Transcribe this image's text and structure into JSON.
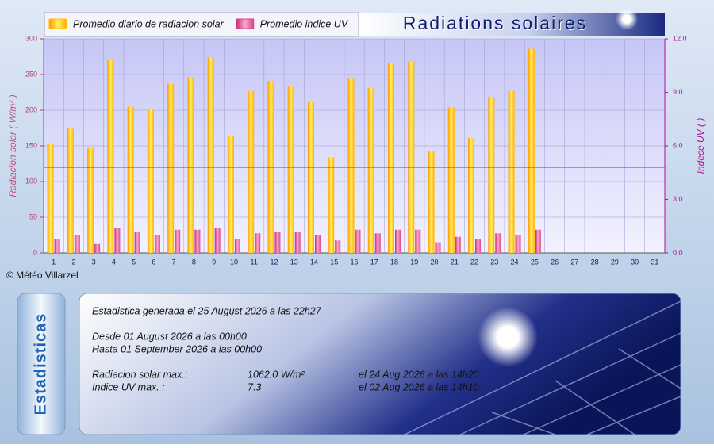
{
  "chart_data": {
    "type": "bar",
    "title": "Radiations solaires",
    "y_label": "Radiacion solar ( W/m² )",
    "y2_label": "Indece UV ( )",
    "categories": [
      "1",
      "2",
      "3",
      "4",
      "5",
      "6",
      "7",
      "8",
      "9",
      "10",
      "11",
      "12",
      "13",
      "14",
      "15",
      "16",
      "17",
      "18",
      "19",
      "20",
      "21",
      "22",
      "23",
      "24",
      "25",
      "26",
      "27",
      "28",
      "29",
      "30",
      "31"
    ],
    "series": [
      {
        "name": "Promedio diario de radiacion solar",
        "color": "#ffc000",
        "values": [
          152,
          174,
          147,
          270,
          205,
          201,
          237,
          246,
          274,
          164,
          227,
          241,
          233,
          211,
          134,
          244,
          231,
          266,
          268,
          142,
          204,
          161,
          219,
          227,
          286,
          null,
          null,
          null,
          null,
          null,
          null
        ]
      },
      {
        "name": "Promedio indice UV",
        "color": "#e0408a",
        "axis": "y2",
        "values": [
          0.8,
          1.0,
          0.5,
          1.4,
          1.2,
          1.0,
          1.3,
          1.3,
          1.4,
          0.8,
          1.1,
          1.2,
          1.2,
          1.0,
          0.7,
          1.3,
          1.1,
          1.3,
          1.3,
          0.6,
          0.9,
          0.8,
          1.1,
          1.0,
          1.3,
          null,
          null,
          null,
          null,
          null,
          null
        ]
      }
    ],
    "ylim": [
      0,
      300
    ],
    "yticks": [
      0,
      50,
      100,
      150,
      200,
      250,
      300
    ],
    "y2lim": [
      0,
      12
    ],
    "y2ticks": [
      {
        "value": 0,
        "label": "0.0"
      },
      {
        "value": 3,
        "label": "3.0"
      },
      {
        "value": 6,
        "label": "6.0"
      },
      {
        "value": 9,
        "label": "9.0"
      },
      {
        "value": 12,
        "label": "12.0"
      }
    ],
    "hline": 120,
    "hline_color": "#e02020",
    "grid": true,
    "legend": "top-left"
  },
  "credit": "© Météo Villarzel",
  "panel": {
    "tab": "Estadisticas",
    "generated": "Estadistica generada el 25 August 2026 a las 22h27",
    "from": "Desde 01 August 2026 a las 00h00",
    "to": "Hasta 01 September 2026 a las 00h00",
    "rows": [
      [
        "Radiacion solar max.:",
        "1062.0 W/m²",
        "el 24 Aug 2026 a las 14h20"
      ],
      [
        "Indice UV max. :",
        "7.3",
        "el 02 Aug 2026 a las 14h10"
      ]
    ]
  }
}
